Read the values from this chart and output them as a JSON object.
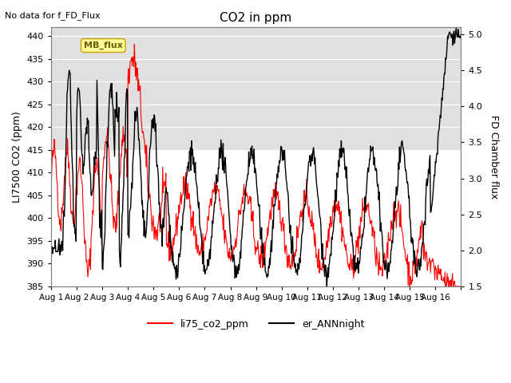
{
  "title": "CO2 in ppm",
  "top_left_text": "No data for f_FD_Flux",
  "ylabel_left": "LI7500 CO2 (ppm)",
  "ylabel_right": "FD Chamber flux",
  "ylim_left": [
    385,
    442
  ],
  "ylim_right": [
    1.5,
    5.1
  ],
  "yticks_left": [
    385,
    390,
    395,
    400,
    405,
    410,
    415,
    420,
    425,
    430,
    435,
    440
  ],
  "yticks_right": [
    1.5,
    2.0,
    2.5,
    3.0,
    3.5,
    4.0,
    4.5,
    5.0
  ],
  "xtick_positions": [
    0,
    1,
    2,
    3,
    4,
    5,
    6,
    7,
    8,
    9,
    10,
    11,
    12,
    13,
    14,
    15,
    16
  ],
  "xtick_labels": [
    "Aug 1",
    "Aug 2",
    "Aug 3",
    "Aug 4",
    "Aug 5",
    "Aug 6",
    "Aug 7",
    "Aug 8",
    "Aug 9",
    "Aug 10",
    "Aug 11",
    "Aug 12",
    "Aug 13",
    "Aug 14",
    "Aug 15",
    "Aug 16",
    ""
  ],
  "legend_label_red": "li75_co2_ppm",
  "legend_label_black": "er_ANNnight",
  "mb_flux_label": "MB_flux",
  "line_color_red": "#ff0000",
  "line_color_black": "#000000",
  "bg_color_upper": "#e0e0e0",
  "bg_split_y": 415,
  "xlim": [
    0,
    16
  ]
}
